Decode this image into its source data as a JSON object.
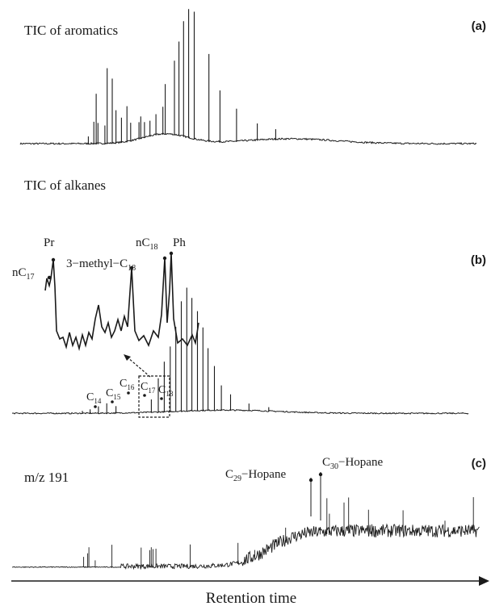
{
  "chart_data": [
    {
      "type": "line",
      "panel_label": "(a)",
      "title": "TIC of aromatics",
      "xlabel": "",
      "ylabel": "",
      "peak_positions": [
        0.148,
        0.16,
        0.165,
        0.169,
        0.184,
        0.189,
        0.2,
        0.208,
        0.22,
        0.232,
        0.24,
        0.258,
        0.262,
        0.27,
        0.282,
        0.295,
        0.31,
        0.315,
        0.335,
        0.345,
        0.355,
        0.366,
        0.378,
        0.41,
        0.434,
        0.47,
        0.515,
        0.555
      ],
      "peak_heights": [
        0.06,
        0.17,
        0.38,
        0.16,
        0.14,
        0.57,
        0.49,
        0.25,
        0.19,
        0.27,
        0.14,
        0.13,
        0.17,
        0.12,
        0.12,
        0.16,
        0.21,
        0.38,
        0.56,
        0.71,
        0.87,
        0.97,
        0.96,
        0.66,
        0.39,
        0.25,
        0.13,
        0.08
      ]
    },
    {
      "type": "line",
      "panel_label": "(b)",
      "title": "TIC of alkanes",
      "xlabel": "",
      "ylabel": "",
      "peak_labels": [
        "C14",
        "C15",
        "C16",
        "C17",
        "C18"
      ],
      "peak_positions": [
        0.135,
        0.152,
        0.17,
        0.188,
        0.208,
        0.285,
        0.3,
        0.313,
        0.326,
        0.338,
        0.35,
        0.362,
        0.373,
        0.385,
        0.397,
        0.408,
        0.422,
        0.437,
        0.457,
        0.497,
        0.54
      ],
      "peak_heights": [
        0.02,
        0.03,
        0.05,
        0.07,
        0.05,
        0.09,
        0.23,
        0.34,
        0.44,
        0.57,
        0.74,
        0.83,
        0.76,
        0.67,
        0.56,
        0.42,
        0.3,
        0.17,
        0.11,
        0.05,
        0.03
      ],
      "inset": {
        "peak_labels": [
          "nC17",
          "Pr",
          "3-methyl-C18",
          "nC18",
          "Ph"
        ]
      }
    },
    {
      "type": "line",
      "panel_label": "(c)",
      "title": "m/z 191",
      "xlabel": "Retention time",
      "ylabel": "",
      "peak_labels": [
        "C29-Hopane",
        "C30-Hopane"
      ]
    }
  ],
  "panel_a": {
    "label": "(a)",
    "title": "TIC of aromatics"
  },
  "panel_b": {
    "label": "(b)",
    "title": "TIC of alkanes",
    "peaks": [
      {
        "main": "C",
        "sub": "14"
      },
      {
        "main": "C",
        "sub": "15"
      },
      {
        "main": "C",
        "sub": "16"
      },
      {
        "main": "C",
        "sub": "17"
      },
      {
        "main": "C",
        "sub": "18"
      }
    ],
    "inset": {
      "nC17": {
        "main": "nC",
        "sub": "17"
      },
      "pr": "Pr",
      "methyl": {
        "main": "3−methyl−C",
        "sub": "18"
      },
      "nC18": {
        "main": "nC",
        "sub": "18"
      },
      "ph": "Ph"
    }
  },
  "panel_c": {
    "label": "(c)",
    "title": "m/z  191",
    "c29": {
      "main": "C",
      "sub": "29",
      "rest": "−Hopane"
    },
    "c30": {
      "main": "C",
      "sub": "30",
      "rest": "−Hopane"
    }
  },
  "x_axis_label": "Retention time",
  "colors": {
    "trace": "#1a1a1a",
    "background": "#ffffff"
  }
}
